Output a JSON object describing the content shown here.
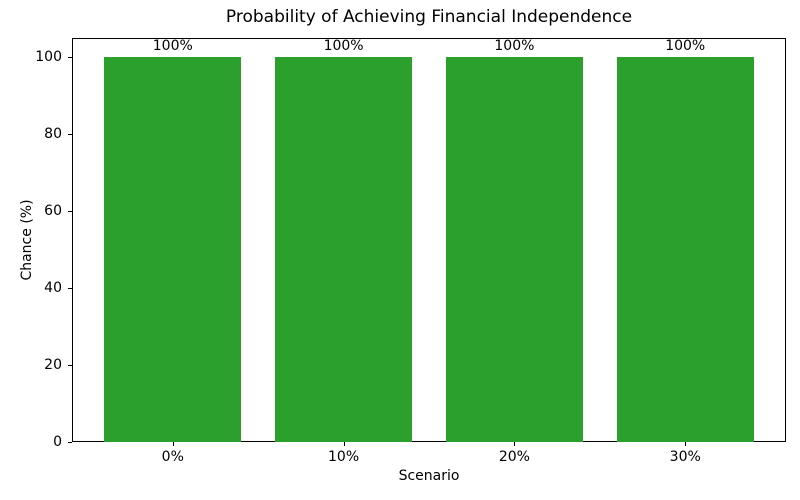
{
  "chart_data": {
    "type": "bar",
    "title": "Probability of Achieving Financial Independence",
    "xlabel": "Scenario",
    "ylabel": "Chance (%)",
    "categories": [
      "0%",
      "10%",
      "20%",
      "30%"
    ],
    "values": [
      100,
      100,
      100,
      100
    ],
    "bar_labels": [
      "100%",
      "100%",
      "100%",
      "100%"
    ],
    "yticks": [
      0,
      20,
      40,
      60,
      80,
      100
    ],
    "ylim": [
      0,
      105
    ],
    "bar_color": "#2ca02c",
    "bar_width_ratio": 0.8,
    "grid": "off",
    "legend": "none"
  }
}
